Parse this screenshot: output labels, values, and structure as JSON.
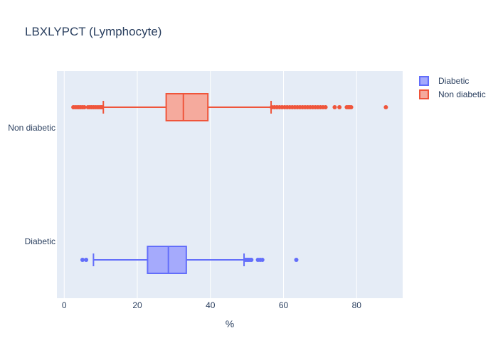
{
  "chart_data": {
    "type": "box",
    "title": "LBXLYPCT (Lymphocyte)",
    "xlabel": "%",
    "ylabel": "",
    "xlim": [
      -2,
      92.6
    ],
    "xticks": [
      0,
      20,
      40,
      60,
      80
    ],
    "orientation": "horizontal",
    "legend_placement": "top-right",
    "grid": true,
    "series": [
      {
        "name": "Diabetic",
        "category": "Diabetic",
        "color": "#636efa",
        "fill": "#a5aafc",
        "whisker_low": 8,
        "q1": 22.8,
        "median": 28.5,
        "q3": 33.4,
        "whisker_high": 49.2,
        "outliers": [
          5,
          6,
          49.6,
          50,
          50.4,
          50.8,
          51.2,
          53,
          53.6,
          54.2,
          63.5
        ]
      },
      {
        "name": "Non diabetic",
        "category": "Non diabetic",
        "color": "#ef553b",
        "fill": "#f5aa9d",
        "whisker_low": 10.7,
        "q1": 27.9,
        "median": 32.6,
        "q3": 39.3,
        "whisker_high": 56.6,
        "outliers": [
          2.5,
          3,
          3.5,
          4,
          4.5,
          5,
          5.5,
          6.5,
          7,
          7.5,
          8,
          8.5,
          9,
          9.5,
          10,
          10.3,
          56.8,
          57.5,
          58.2,
          58.9,
          59.6,
          60.3,
          61,
          61.7,
          62.4,
          63.1,
          63.8,
          64.5,
          65.2,
          65.9,
          66.6,
          67.3,
          68,
          68.7,
          69.4,
          70.1,
          70.8,
          71.5,
          74,
          75.3,
          77.3,
          77.7,
          78.1,
          78.5,
          88
        ]
      }
    ]
  }
}
